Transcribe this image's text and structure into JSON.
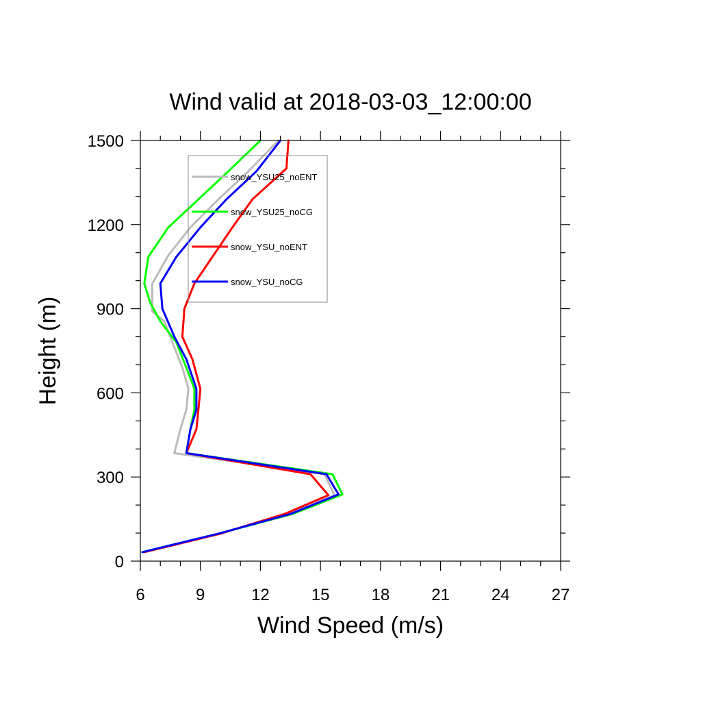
{
  "chart_data": {
    "type": "line",
    "title": "Wind valid at 2018-03-03_12:00:00",
    "xlabel": "Wind Speed (m/s)",
    "ylabel": "Height (m)",
    "xlim": [
      6,
      27
    ],
    "ylim": [
      0,
      1500
    ],
    "xticks": [
      6,
      9,
      12,
      15,
      18,
      21,
      24,
      27
    ],
    "yticks": [
      0,
      300,
      600,
      900,
      1200,
      1500
    ],
    "grid": false,
    "legend": "top-left, inside plot, framed",
    "series": [
      {
        "name": "snow_YSU25_noENT",
        "color": "#bbbbbb",
        "points": [
          [
            6.1,
            32
          ],
          [
            9.9,
            98
          ],
          [
            13.4,
            168
          ],
          [
            15.7,
            235
          ],
          [
            15.2,
            310
          ],
          [
            7.7,
            385
          ],
          [
            8.0,
            470
          ],
          [
            8.3,
            540
          ],
          [
            8.4,
            615
          ],
          [
            8.1,
            690
          ],
          [
            7.6,
            780
          ],
          [
            7.2,
            855
          ],
          [
            6.6,
            890
          ],
          [
            6.6,
            990
          ],
          [
            7.4,
            1090
          ],
          [
            8.5,
            1190
          ],
          [
            9.9,
            1290
          ],
          [
            11.4,
            1390
          ],
          [
            12.9,
            1500
          ]
        ]
      },
      {
        "name": "snow_YSU25_noCG",
        "color": "#00ff00",
        "points": [
          [
            6.1,
            32
          ],
          [
            9.9,
            98
          ],
          [
            13.6,
            168
          ],
          [
            16.1,
            238
          ],
          [
            15.6,
            310
          ],
          [
            8.3,
            385
          ],
          [
            8.5,
            470
          ],
          [
            8.7,
            540
          ],
          [
            8.7,
            615
          ],
          [
            8.3,
            690
          ],
          [
            7.8,
            780
          ],
          [
            7.0,
            855
          ],
          [
            6.5,
            920
          ],
          [
            6.2,
            990
          ],
          [
            6.4,
            1085
          ],
          [
            7.4,
            1190
          ],
          [
            8.9,
            1290
          ],
          [
            10.4,
            1390
          ],
          [
            12.0,
            1500
          ]
        ]
      },
      {
        "name": "snow_YSU_noENT",
        "color": "#ff0000",
        "points": [
          [
            6.2,
            32
          ],
          [
            10.0,
            98
          ],
          [
            13.2,
            168
          ],
          [
            15.4,
            235
          ],
          [
            14.5,
            310
          ],
          [
            8.3,
            385
          ],
          [
            8.8,
            470
          ],
          [
            8.9,
            540
          ],
          [
            9.0,
            615
          ],
          [
            8.6,
            720
          ],
          [
            8.1,
            800
          ],
          [
            8.2,
            900
          ],
          [
            8.7,
            990
          ],
          [
            9.6,
            1085
          ],
          [
            10.6,
            1190
          ],
          [
            11.6,
            1290
          ],
          [
            13.3,
            1400
          ],
          [
            13.4,
            1500
          ]
        ]
      },
      {
        "name": "snow_YSU_noCG",
        "color": "#0000ff",
        "points": [
          [
            6.1,
            32
          ],
          [
            9.9,
            98
          ],
          [
            13.5,
            168
          ],
          [
            15.9,
            238
          ],
          [
            15.3,
            310
          ],
          [
            8.3,
            385
          ],
          [
            8.5,
            470
          ],
          [
            8.8,
            540
          ],
          [
            8.8,
            615
          ],
          [
            8.3,
            720
          ],
          [
            7.7,
            800
          ],
          [
            7.1,
            900
          ],
          [
            7.0,
            990
          ],
          [
            7.8,
            1085
          ],
          [
            9.0,
            1190
          ],
          [
            10.3,
            1290
          ],
          [
            11.8,
            1390
          ],
          [
            13.0,
            1500
          ]
        ]
      }
    ]
  }
}
